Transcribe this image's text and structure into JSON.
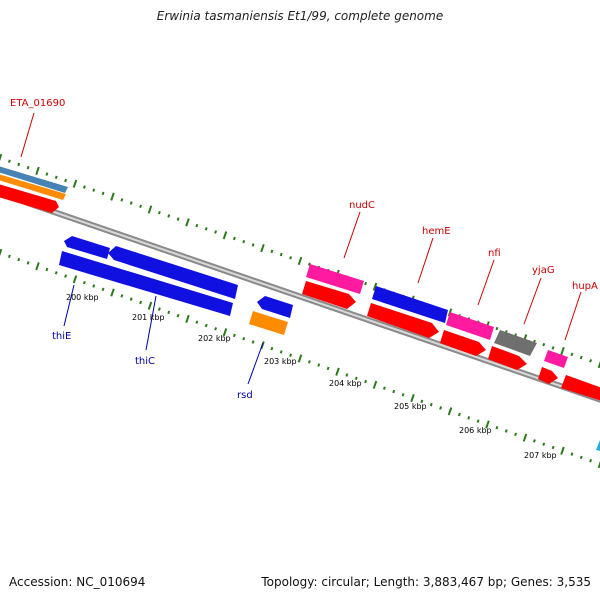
{
  "title": "Erwinia tasmaniensis Et1/99, complete genome",
  "footer": {
    "accession": "Accession: NC_010694",
    "stats": "Topology: circular; Length: 3,883,467 bp; Genes: 3,535"
  },
  "colors": {
    "backbone": "#888888",
    "tick": "#2a7a1a",
    "forward_label": "#cc0000",
    "reverse_label": "#0000aa",
    "cds_red": "#ff0000",
    "cds_blue": "#1010e0",
    "cds_magenta": "#ff1aa0",
    "cds_orange": "#ff8c00",
    "cds_gray": "#6f6f6f",
    "cds_steel": "#4682b4",
    "cds_cyan": "#1ab0e0"
  },
  "kbp_labels": [
    "200 kbp",
    "201 kbp",
    "202 kbp",
    "203 kbp",
    "204 kbp",
    "205 kbp",
    "206 kbp",
    "207 kbp"
  ],
  "gene_labels": {
    "forward": [
      "ETA_01690",
      "nudC",
      "hemE",
      "nfi",
      "yjaG",
      "hupA"
    ],
    "reverse": [
      "thiE",
      "thiC",
      "rsd"
    ]
  }
}
